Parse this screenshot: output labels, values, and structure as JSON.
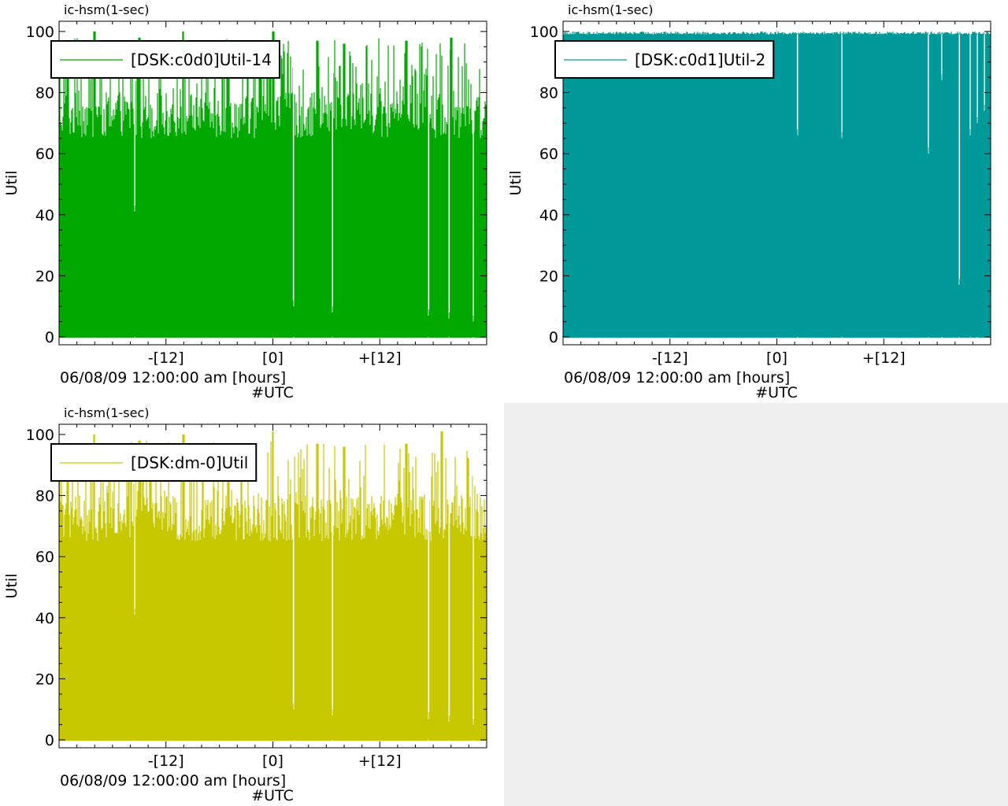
{
  "chart_data": [
    {
      "type": "area",
      "title": "ic-hsm(1-sec)",
      "ylabel": "Util",
      "xlabel": "06/08/09 12:00:00 am [hours]",
      "xlabel2": "#UTC",
      "ylim": [
        0,
        100
      ],
      "yticks": [
        "0",
        "20",
        "40",
        "60",
        "80",
        "100"
      ],
      "xlim": [
        -24,
        24
      ],
      "xticks": [
        {
          "value": -12,
          "label": "-[12]"
        },
        {
          "value": 0,
          "label": "[0]"
        },
        {
          "value": 12,
          "label": "+[12]"
        }
      ],
      "legend": "top-left",
      "color": "#00a800",
      "series": [
        {
          "name": "[DSK:c0d0]Util-14",
          "base_range": [
            65,
            80
          ],
          "spikes_max": [
            [
              -23,
              97
            ],
            [
              -20,
              100
            ],
            [
              -15,
              98
            ],
            [
              -10,
              100
            ],
            [
              -5,
              97
            ],
            [
              0,
              100
            ],
            [
              5,
              97
            ],
            [
              8,
              96
            ],
            [
              15,
              97
            ],
            [
              20,
              98
            ]
          ],
          "dips": [
            [
              -15.5,
              43
            ],
            [
              2.3,
              12
            ],
            [
              6.7,
              10
            ],
            [
              17.5,
              9
            ],
            [
              19.8,
              8
            ],
            [
              22.5,
              7
            ]
          ]
        }
      ]
    },
    {
      "type": "area",
      "title": "ic-hsm(1-sec)",
      "ylabel": "Util",
      "xlabel": "06/08/09 12:00:00 am [hours]",
      "xlabel2": "#UTC",
      "ylim": [
        0,
        100
      ],
      "yticks": [
        "0",
        "20",
        "40",
        "60",
        "80",
        "100"
      ],
      "xlim": [
        -24,
        24
      ],
      "xticks": [
        {
          "value": -12,
          "label": "-[12]"
        },
        {
          "value": 0,
          "label": "[0]"
        },
        {
          "value": 12,
          "label": "+[12]"
        }
      ],
      "legend": "top-left",
      "color": "#009999",
      "series": [
        {
          "name": "[DSK:c0d1]Util-2",
          "base_range": [
            99,
            100
          ],
          "spikes_max": [],
          "dips": [
            [
              2.3,
              68
            ],
            [
              7.3,
              67
            ],
            [
              17,
              62
            ],
            [
              18.5,
              86
            ],
            [
              20.5,
              19
            ],
            [
              21.7,
              68
            ],
            [
              22.5,
              72
            ],
            [
              23.3,
              76
            ]
          ]
        }
      ]
    },
    {
      "type": "area",
      "title": "ic-hsm(1-sec)",
      "ylabel": "Util",
      "xlabel": "06/08/09 12:00:00 am [hours]",
      "xlabel2": "#UTC",
      "ylim": [
        0,
        100
      ],
      "yticks": [
        "0",
        "20",
        "40",
        "60",
        "80",
        "100"
      ],
      "xlim": [
        -24,
        24
      ],
      "xticks": [
        {
          "value": -12,
          "label": "-[12]"
        },
        {
          "value": 0,
          "label": "[0]"
        },
        {
          "value": 12,
          "label": "+[12]"
        }
      ],
      "legend": "top-left",
      "color": "#c8c800",
      "series": [
        {
          "name": "[DSK:dm-0]Util",
          "base_range": [
            65,
            80
          ],
          "spikes_max": [
            [
              -23,
              97
            ],
            [
              -20,
              100
            ],
            [
              -15,
              98
            ],
            [
              -10,
              100
            ],
            [
              -5,
              97
            ],
            [
              0,
              101
            ],
            [
              5,
              97
            ],
            [
              8,
              96
            ],
            [
              15,
              97
            ],
            [
              19,
              101
            ]
          ],
          "dips": [
            [
              -15.5,
              43
            ],
            [
              2.3,
              12
            ],
            [
              6.7,
              10
            ],
            [
              17.5,
              9
            ],
            [
              19.8,
              8
            ],
            [
              22.5,
              7
            ]
          ]
        }
      ]
    }
  ]
}
